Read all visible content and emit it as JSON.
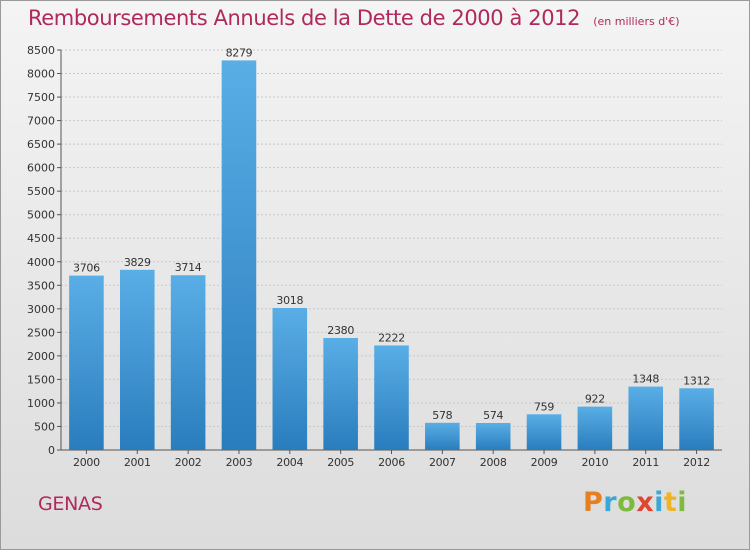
{
  "title": "Remboursements Annuels de la Dette de 2000 à 2012",
  "subtitle": "(en milliers d'€)",
  "commune": "GENAS",
  "logo": {
    "letters": [
      "P",
      "r",
      "o",
      "x",
      "i",
      "t",
      "i"
    ]
  },
  "colors": {
    "title": "#b0295d",
    "bar_top": "#5aaee6",
    "bar_bottom": "#2a7dbd",
    "grid": "#c8c8c8"
  },
  "chart_data": {
    "type": "bar",
    "categories": [
      "2000",
      "2001",
      "2002",
      "2003",
      "2004",
      "2005",
      "2006",
      "2007",
      "2008",
      "2009",
      "2010",
      "2011",
      "2012"
    ],
    "values": [
      3706,
      3829,
      3714,
      8279,
      3018,
      2380,
      2222,
      578,
      574,
      759,
      922,
      1348,
      1312
    ],
    "ylim": [
      0,
      8500
    ],
    "yticks": [
      0,
      500,
      1000,
      1500,
      2000,
      2500,
      3000,
      3500,
      4000,
      4500,
      5000,
      5500,
      6000,
      6500,
      7000,
      7500,
      8000,
      8500
    ],
    "grid": true
  }
}
